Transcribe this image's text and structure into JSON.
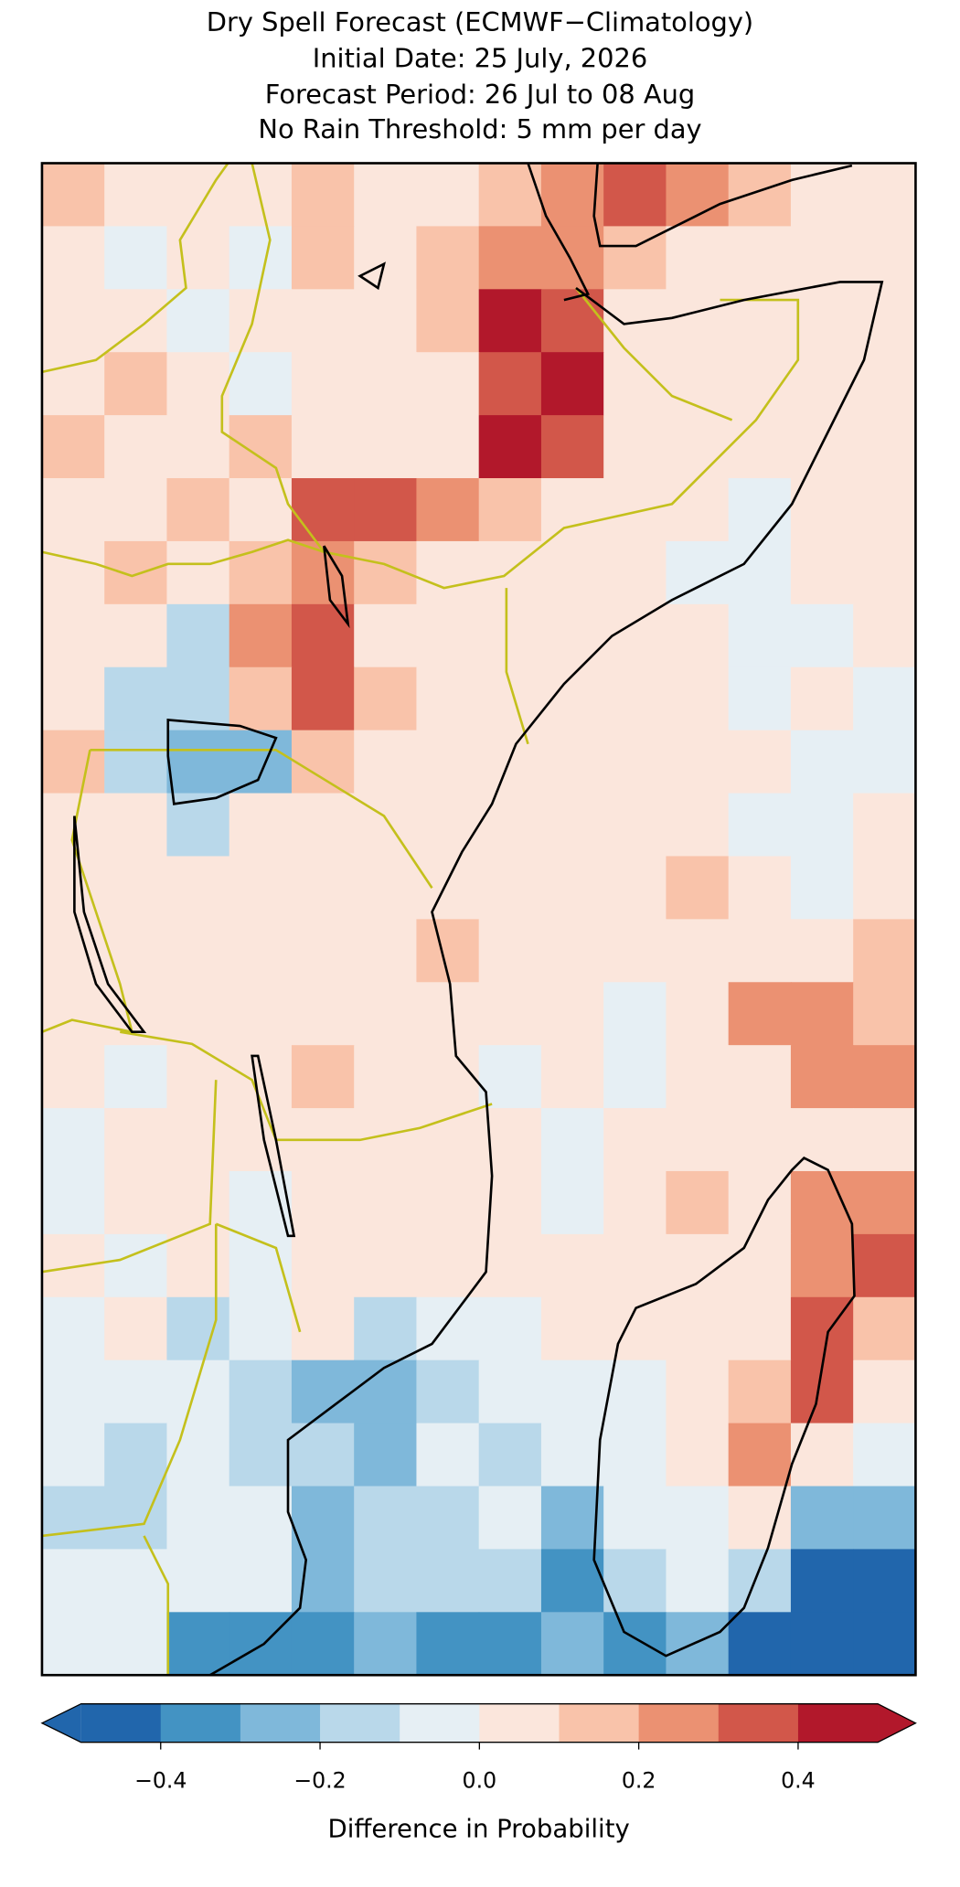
{
  "chart_data": {
    "type": "heatmap",
    "title": [
      "Dry Spell Forecast (ECMWF−Climatology)",
      "Initial Date: 25 July, 2026",
      "Forecast Period: 26 Jul to 08 Aug",
      "No Rain Threshold: 5 mm per day"
    ],
    "colorbar_label": "Difference in Probability",
    "levels": [
      -0.5,
      -0.4,
      -0.3,
      -0.2,
      -0.1,
      0,
      0.1,
      0.2,
      0.3,
      0.4,
      0.5
    ],
    "colors": [
      "#2166ac",
      "#4393c3",
      "#7fb8da",
      "#b9d8ea",
      "#e6eff4",
      "#fbe6dc",
      "#f9c3aa",
      "#eb9172",
      "#d2574a",
      "#b2182b"
    ],
    "cticks": [
      {
        "value": -0.4,
        "label": "−0.4"
      },
      {
        "value": -0.2,
        "label": "−0.2"
      },
      {
        "value": 0,
        "label": "0.0"
      },
      0.2,
      0.4
    ],
    "grid": [
      [
        0.15,
        0.05,
        0.05,
        0.05,
        0.15,
        0.05,
        0.05,
        0.15,
        0.25,
        0.35,
        0.25,
        0.15,
        0.05,
        0.05
      ],
      [
        0.05,
        -0.05,
        0.05,
        -0.05,
        0.15,
        0.05,
        0.15,
        0.25,
        0.25,
        0.15,
        0.05,
        0.05,
        0.05,
        0.05
      ],
      [
        0.05,
        0.05,
        -0.05,
        0.05,
        0.05,
        0.05,
        0.15,
        0.45,
        0.35,
        0.05,
        0.05,
        0.05,
        0.05,
        0.05
      ],
      [
        0.05,
        0.15,
        0.05,
        -0.05,
        0.05,
        0.05,
        0.05,
        0.35,
        0.45,
        0.05,
        0.05,
        0.05,
        0.05,
        0.05
      ],
      [
        0.15,
        0.05,
        0.05,
        0.15,
        0.05,
        0.05,
        0.05,
        0.45,
        0.35,
        0.05,
        0.05,
        0.05,
        0.05,
        0.05
      ],
      [
        0.05,
        0.05,
        0.15,
        0.05,
        0.35,
        0.35,
        0.25,
        0.15,
        0.05,
        0.05,
        0.05,
        -0.05,
        0.05,
        0.05
      ],
      [
        0.05,
        0.15,
        0.05,
        0.15,
        0.25,
        0.15,
        0.05,
        0.05,
        0.05,
        0.05,
        -0.05,
        -0.05,
        0.05,
        0.05
      ],
      [
        0.05,
        0.05,
        -0.15,
        0.25,
        0.35,
        0.05,
        0.05,
        0.05,
        0.05,
        0.05,
        0.05,
        -0.05,
        -0.05,
        0.05
      ],
      [
        0.05,
        -0.15,
        -0.15,
        0.15,
        0.35,
        0.15,
        0.05,
        0.05,
        0.05,
        0.05,
        0.05,
        -0.05,
        0.05,
        -0.05
      ],
      [
        0.15,
        -0.15,
        -0.25,
        -0.25,
        0.15,
        0.05,
        0.05,
        0.05,
        0.05,
        0.05,
        0.05,
        0.05,
        -0.05,
        -0.05
      ],
      [
        0.05,
        0.05,
        -0.15,
        0.05,
        0.05,
        0.05,
        0.05,
        0.05,
        0.05,
        0.05,
        0.05,
        -0.05,
        -0.05,
        0.05
      ],
      [
        0.05,
        0.05,
        0.05,
        0.05,
        0.05,
        0.05,
        0.05,
        0.05,
        0.05,
        0.05,
        0.15,
        0.05,
        -0.05,
        0.05
      ],
      [
        0.05,
        0.05,
        0.05,
        0.05,
        0.05,
        0.05,
        0.15,
        0.05,
        0.05,
        0.05,
        0.05,
        0.05,
        0.05,
        0.15
      ],
      [
        0.05,
        0.05,
        0.05,
        0.05,
        0.05,
        0.05,
        0.05,
        0.05,
        0.05,
        -0.05,
        0.05,
        0.25,
        0.25,
        0.15
      ],
      [
        0.05,
        -0.05,
        0.05,
        0.05,
        0.15,
        0.05,
        0.05,
        -0.05,
        0.05,
        -0.05,
        0.05,
        0.05,
        0.25,
        0.25
      ],
      [
        -0.05,
        0.05,
        0.05,
        0.05,
        0.05,
        0.05,
        0.05,
        0.05,
        -0.05,
        0.05,
        0.05,
        0.05,
        0.05,
        0.05
      ],
      [
        -0.05,
        0.05,
        0.05,
        -0.05,
        0.05,
        0.05,
        0.05,
        0.05,
        -0.05,
        0.05,
        0.15,
        0.05,
        0.25,
        0.25
      ],
      [
        0.05,
        -0.05,
        0.05,
        -0.05,
        0.05,
        0.05,
        0.05,
        0.05,
        0.05,
        0.05,
        0.05,
        0.05,
        0.25,
        0.35
      ],
      [
        -0.05,
        0.05,
        -0.15,
        -0.05,
        0.05,
        -0.15,
        -0.05,
        -0.05,
        0.05,
        0.05,
        0.05,
        0.05,
        0.35,
        0.15
      ],
      [
        -0.05,
        -0.05,
        -0.05,
        -0.15,
        -0.25,
        -0.25,
        -0.15,
        -0.05,
        -0.05,
        -0.05,
        0.05,
        0.15,
        0.35,
        0.05
      ],
      [
        -0.05,
        -0.15,
        -0.05,
        -0.15,
        -0.15,
        -0.25,
        -0.05,
        -0.15,
        -0.05,
        -0.05,
        0.05,
        0.25,
        0.05,
        -0.05
      ],
      [
        -0.15,
        -0.15,
        -0.05,
        -0.05,
        -0.25,
        -0.15,
        -0.15,
        -0.05,
        -0.25,
        -0.05,
        -0.05,
        0.05,
        -0.25,
        -0.25
      ],
      [
        -0.05,
        -0.05,
        -0.05,
        -0.05,
        -0.25,
        -0.15,
        -0.15,
        -0.15,
        -0.35,
        -0.15,
        -0.05,
        -0.15,
        -0.45,
        -0.45
      ],
      [
        -0.05,
        -0.05,
        -0.35,
        -0.35,
        -0.35,
        -0.25,
        -0.35,
        -0.35,
        -0.25,
        -0.35,
        -0.25,
        -0.45,
        -0.45,
        -0.45
      ]
    ]
  }
}
